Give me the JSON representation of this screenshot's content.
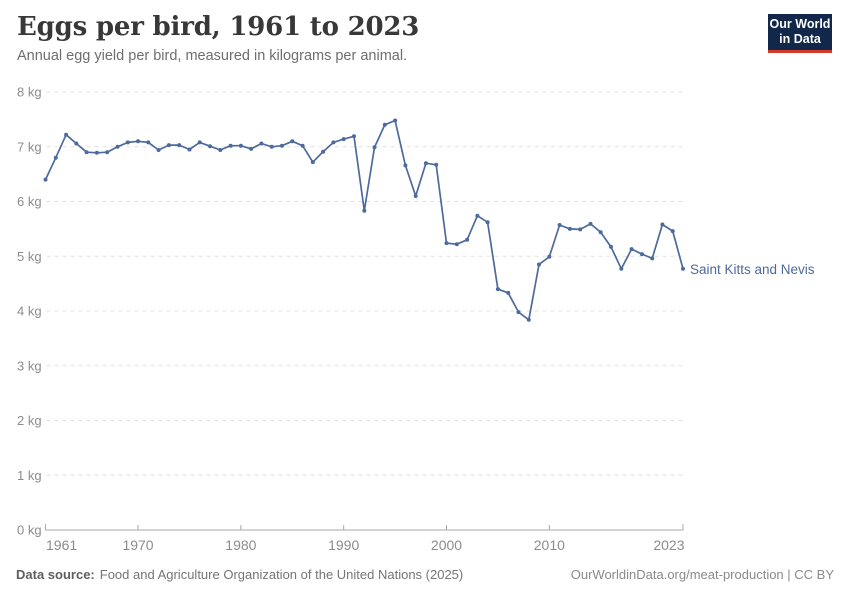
{
  "header": {
    "title": "Eggs per bird, 1961 to 2023",
    "subtitle": "Annual egg yield per bird, measured in kilograms per animal."
  },
  "logo": {
    "line1": "Our World",
    "line2": "in Data",
    "bg_color": "#12284B",
    "accent_color": "#D6382C"
  },
  "entity_label": "Saint Kitts and Nevis",
  "footer": {
    "datasource_label": "Data source:",
    "datasource_text": "Food and Agriculture Organization of the United Nations (2025)",
    "license_text": "OurWorldinData.org/meat-production | CC BY"
  },
  "colors": {
    "series": "#4c6a9c",
    "gridline": "#e2e2e2",
    "axis_line": "#a8a8a8",
    "tick_label": "#8c8c8c",
    "title": "#383838",
    "subtitle": "#6e6e6e"
  },
  "chart_data": {
    "type": "line",
    "title": "Eggs per bird, 1961 to 2023",
    "subtitle": "Annual egg yield per bird, measured in kilograms per animal.",
    "xlabel": "",
    "ylabel": "kg",
    "xlim": [
      1961,
      2023
    ],
    "ylim": [
      0,
      8
    ],
    "x_ticks": [
      1961,
      1970,
      1980,
      1990,
      2000,
      2010,
      2023
    ],
    "y_ticks": [
      0,
      1,
      2,
      3,
      4,
      5,
      6,
      7,
      8
    ],
    "y_tick_suffix": " kg",
    "grid": "horizontal-dashed",
    "legend_position": "end-of-line-label",
    "series": [
      {
        "name": "Saint Kitts and Nevis",
        "color": "#4c6a9c",
        "x": [
          1961,
          1962,
          1963,
          1964,
          1965,
          1966,
          1967,
          1968,
          1969,
          1970,
          1971,
          1972,
          1973,
          1974,
          1975,
          1976,
          1977,
          1978,
          1979,
          1980,
          1981,
          1982,
          1983,
          1984,
          1985,
          1986,
          1987,
          1988,
          1989,
          1990,
          1991,
          1992,
          1993,
          1994,
          1995,
          1996,
          1997,
          1998,
          1999,
          2000,
          2001,
          2002,
          2003,
          2004,
          2005,
          2006,
          2007,
          2008,
          2009,
          2010,
          2011,
          2012,
          2013,
          2014,
          2015,
          2016,
          2017,
          2018,
          2019,
          2020,
          2021,
          2022,
          2023
        ],
        "values": [
          6.4,
          6.8,
          7.22,
          7.06,
          6.9,
          6.89,
          6.9,
          7.0,
          7.08,
          7.1,
          7.08,
          6.94,
          7.03,
          7.03,
          6.95,
          7.08,
          7.01,
          6.94,
          7.02,
          7.02,
          6.96,
          7.06,
          7.0,
          7.02,
          7.1,
          7.02,
          6.72,
          6.91,
          7.08,
          7.14,
          7.19,
          5.83,
          6.99,
          7.4,
          7.48,
          6.66,
          6.1,
          6.7,
          6.67,
          5.24,
          5.22,
          5.3,
          5.74,
          5.62,
          4.4,
          4.33,
          3.98,
          3.84,
          4.85,
          4.99,
          5.57,
          5.5,
          5.49,
          5.59,
          5.44,
          5.17,
          4.77,
          5.13,
          5.04,
          4.96,
          5.58,
          5.46,
          4.77
        ]
      }
    ]
  }
}
